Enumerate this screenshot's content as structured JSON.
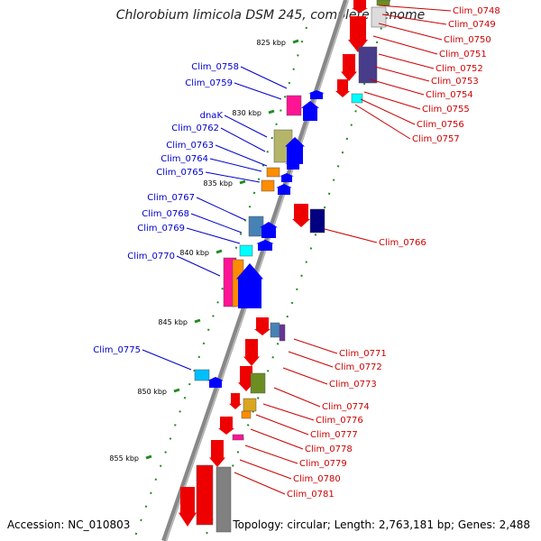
{
  "title": "Chlorobium limicola DSM 245, complete genome",
  "footer": {
    "accession": "Accession: NC_010803",
    "topology": "Topology: circular; Length: 2,763,181 bp; Genes: 2,488"
  },
  "colors": {
    "backbone": "#888888",
    "label_forward": "#0000cc",
    "label_reverse": "#cc0000",
    "tick": "#228B22"
  },
  "kbp_ticks": [
    "825 kbp",
    "830 kbp",
    "835 kbp",
    "840 kbp",
    "845 kbp",
    "850 kbp",
    "855 kbp"
  ],
  "forward_labels": [
    "Clim_0758",
    "Clim_0759",
    "dnaK",
    "Clim_0762",
    "Clim_0763",
    "Clim_0764",
    "Clim_0765",
    "Clim_0767",
    "Clim_0768",
    "Clim_0769",
    "Clim_0770",
    "Clim_0775"
  ],
  "reverse_labels": [
    "Clim_0748",
    "Clim_0749",
    "Clim_0750",
    "Clim_0751",
    "Clim_0752",
    "Clim_0753",
    "Clim_0754",
    "Clim_0755",
    "Clim_0756",
    "Clim_0757",
    "Clim_0766",
    "Clim_0771",
    "Clim_0772",
    "Clim_0773",
    "Clim_0774",
    "Clim_0776",
    "Clim_0777",
    "Clim_0778",
    "Clim_0779",
    "Clim_0780",
    "Clim_0781"
  ]
}
